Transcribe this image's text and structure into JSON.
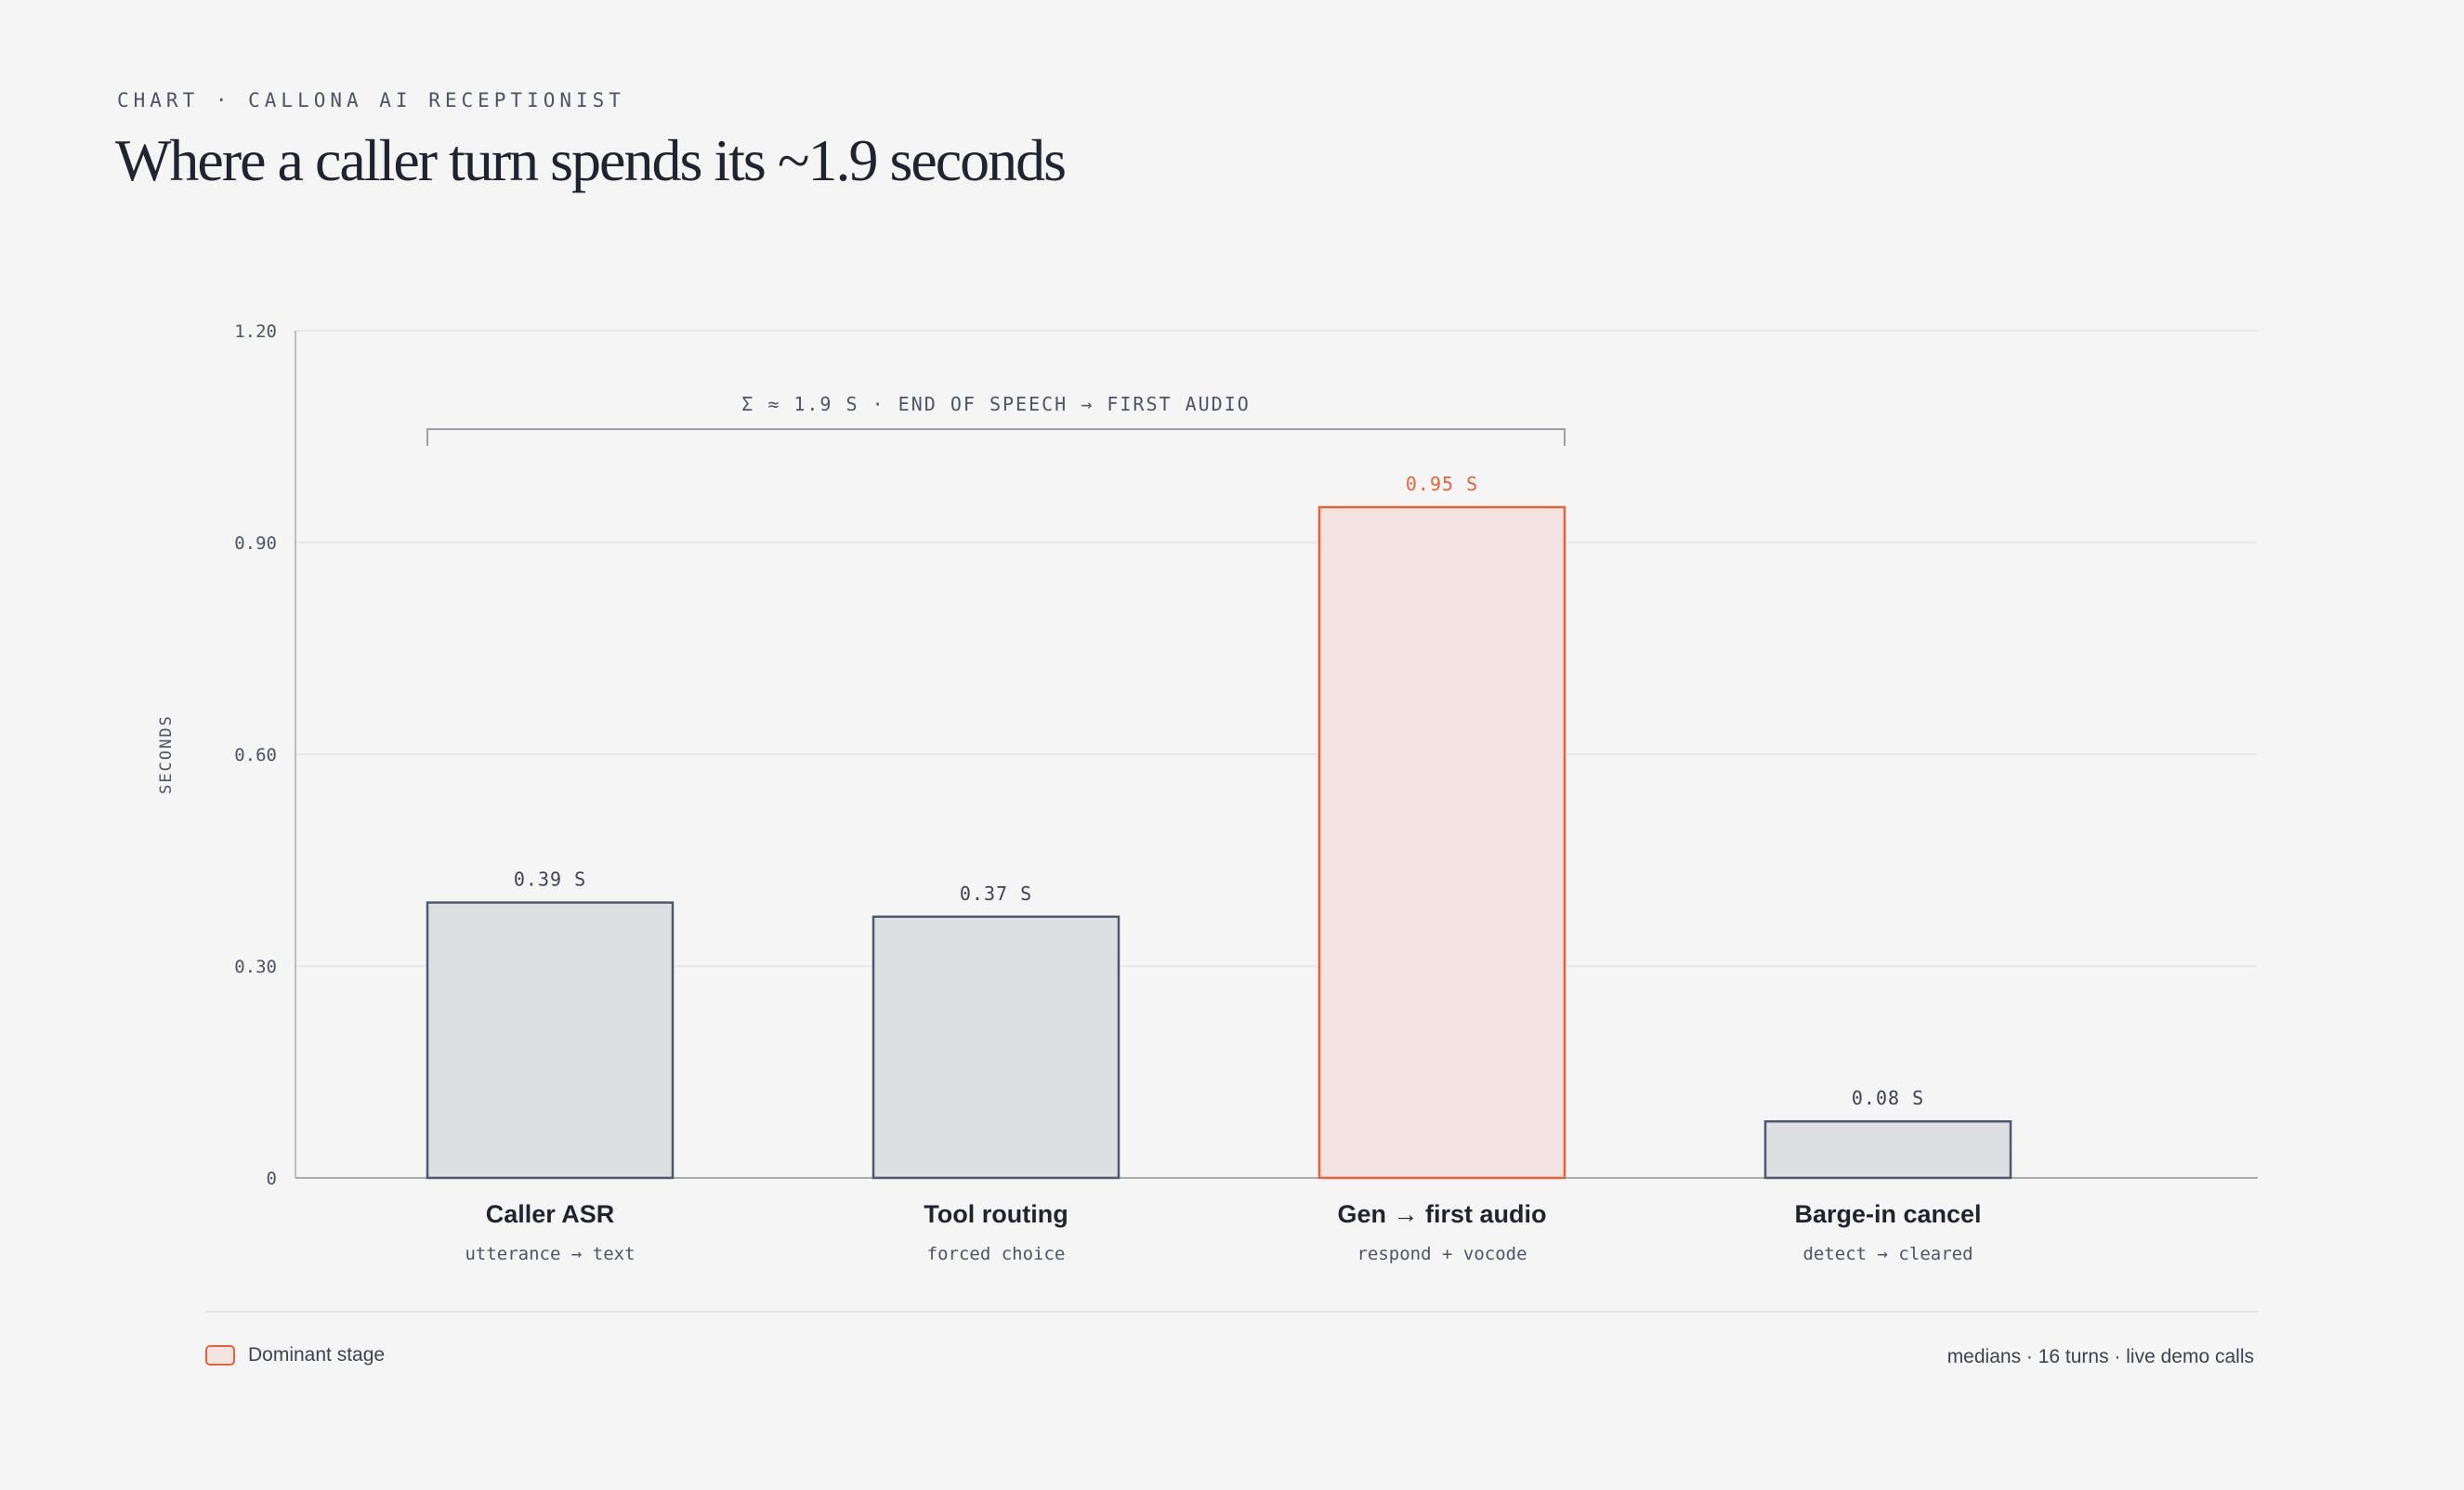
{
  "header": {
    "eyebrow": "CHART · CALLONA AI RECEPTIONIST",
    "title": "Where a caller turn spends its ~1.9 seconds"
  },
  "chart_data": {
    "type": "bar",
    "title": "Where a caller turn spends its ~1.9 seconds",
    "ylabel": "SECONDS",
    "xlabel": "",
    "ylim": [
      0,
      1.2
    ],
    "yticks": [
      0,
      0.3,
      0.6,
      0.9,
      1.2
    ],
    "ytick_labels": [
      "0",
      "0.30",
      "0.60",
      "0.90",
      "1.20"
    ],
    "grid": true,
    "categories": [
      "Caller ASR",
      "Tool routing",
      "Gen → first audio",
      "Barge-in cancel"
    ],
    "subtitles": [
      "utterance → text",
      "forced choice",
      "respond + vocode",
      "detect → cleared"
    ],
    "values": [
      0.39,
      0.37,
      0.95,
      0.08
    ],
    "value_labels": [
      "0.39 S",
      "0.37 S",
      "0.95 S",
      "0.08 S"
    ],
    "highlight": [
      false,
      false,
      true,
      false
    ],
    "annotation": {
      "text": "Σ ≈ 1.9 S · END OF SPEECH → FIRST AUDIO",
      "from_category": 0,
      "to_category": 2
    },
    "legend": {
      "label": "Dominant stage",
      "placement": "bottom-left"
    }
  },
  "colors": {
    "bar_fill": "#dddfe3",
    "bar_stroke": "#4e5870",
    "highlight_fill": "#f3e3de",
    "highlight_stroke": "#e5623a",
    "grid": "#e3e3e3",
    "axis": "#a9abb2",
    "bracket": "#9c9ea5"
  },
  "footnote": "medians · 16 turns · live demo calls"
}
